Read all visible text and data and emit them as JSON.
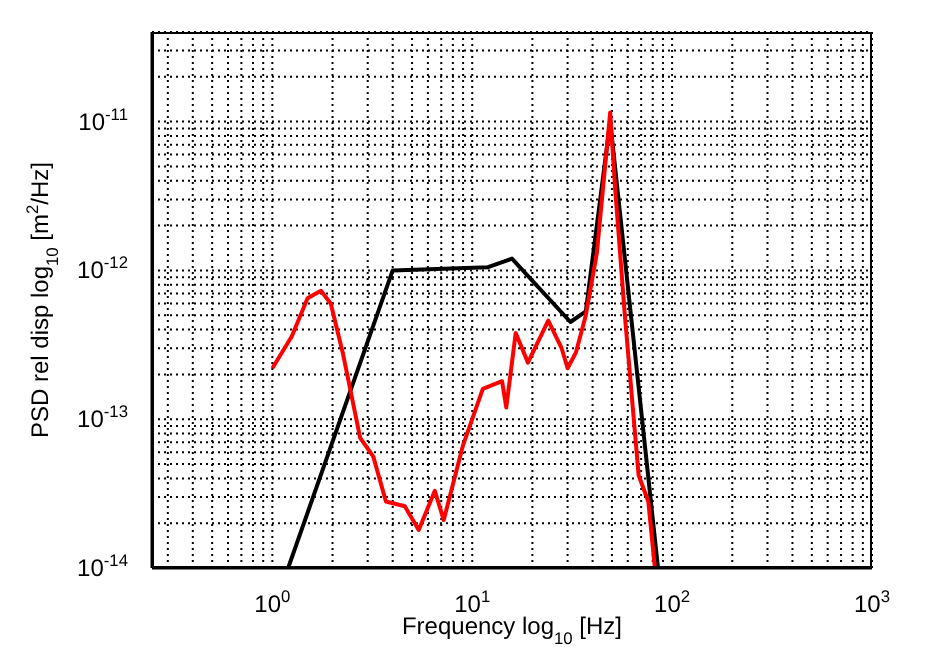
{
  "chart_data": {
    "type": "line",
    "xlabel": "Frequency log$_{10}$ [Hz]",
    "ylabel": "PSD rel disp log$_{10}$ [m$^{2}$/Hz]",
    "log": "xy",
    "grid": true,
    "marker": "none",
    "line_style": "solid",
    "xlim": [
      0.25,
      1000
    ],
    "ylim": [
      1e-14,
      4e-11
    ],
    "xticks": [
      {
        "value": 0.3,
        "label": null
      },
      {
        "value": 0.4,
        "label": null
      },
      {
        "value": 0.5,
        "label": null
      },
      {
        "value": 0.6,
        "label": null
      },
      {
        "value": 0.7,
        "label": null
      },
      {
        "value": 0.8,
        "label": null
      },
      {
        "value": 0.9,
        "label": null
      },
      {
        "value": 1,
        "label": "10$^{0}$"
      },
      {
        "value": 2,
        "label": null
      },
      {
        "value": 3,
        "label": null
      },
      {
        "value": 4,
        "label": null
      },
      {
        "value": 5,
        "label": null
      },
      {
        "value": 6,
        "label": null
      },
      {
        "value": 7,
        "label": null
      },
      {
        "value": 8,
        "label": null
      },
      {
        "value": 9,
        "label": null
      },
      {
        "value": 10,
        "label": "10$^{1}$"
      },
      {
        "value": 20,
        "label": null
      },
      {
        "value": 30,
        "label": null
      },
      {
        "value": 40,
        "label": null
      },
      {
        "value": 50,
        "label": null
      },
      {
        "value": 60,
        "label": null
      },
      {
        "value": 70,
        "label": null
      },
      {
        "value": 80,
        "label": null
      },
      {
        "value": 90,
        "label": null
      },
      {
        "value": 100,
        "label": "10$^{2}$"
      },
      {
        "value": 200,
        "label": null
      },
      {
        "value": 300,
        "label": null
      },
      {
        "value": 400,
        "label": null
      },
      {
        "value": 500,
        "label": null
      },
      {
        "value": 600,
        "label": null
      },
      {
        "value": 700,
        "label": null
      },
      {
        "value": 800,
        "label": null
      },
      {
        "value": 900,
        "label": null
      },
      {
        "value": 1000,
        "label": "10$^{3}$"
      }
    ],
    "yticks": [
      {
        "value": 1e-14,
        "label": "10$^{-14}$"
      },
      {
        "value": 2e-14,
        "label": null
      },
      {
        "value": 3e-14,
        "label": null
      },
      {
        "value": 4e-14,
        "label": null
      },
      {
        "value": 5e-14,
        "label": null
      },
      {
        "value": 6e-14,
        "label": null
      },
      {
        "value": 7e-14,
        "label": null
      },
      {
        "value": 8e-14,
        "label": null
      },
      {
        "value": 9e-14,
        "label": null
      },
      {
        "value": 1e-13,
        "label": "10$^{-13}$"
      },
      {
        "value": 2e-13,
        "label": null
      },
      {
        "value": 3e-13,
        "label": null
      },
      {
        "value": 4e-13,
        "label": null
      },
      {
        "value": 5e-13,
        "label": null
      },
      {
        "value": 6e-13,
        "label": null
      },
      {
        "value": 7e-13,
        "label": null
      },
      {
        "value": 8e-13,
        "label": null
      },
      {
        "value": 9e-13,
        "label": null
      },
      {
        "value": 1e-12,
        "label": "10$^{-12}$"
      },
      {
        "value": 2e-12,
        "label": null
      },
      {
        "value": 3e-12,
        "label": null
      },
      {
        "value": 4e-12,
        "label": null
      },
      {
        "value": 5e-12,
        "label": null
      },
      {
        "value": 6e-12,
        "label": null
      },
      {
        "value": 7e-12,
        "label": null
      },
      {
        "value": 8e-12,
        "label": null
      },
      {
        "value": 9e-12,
        "label": null
      },
      {
        "value": 1e-11,
        "label": "10$^{-11}$"
      },
      {
        "value": 2e-11,
        "label": null
      },
      {
        "value": 3e-11,
        "label": null
      }
    ],
    "series": [
      {
        "color": "#000000",
        "x": [
          1.2,
          4.0,
          12,
          15.8,
          31,
          37,
          49,
          85
        ],
        "values": [
          1e-14,
          1e-12,
          1.05e-12,
          1.2e-12,
          4.5e-13,
          5.3e-13,
          1e-11,
          1e-14
        ]
      },
      {
        "color": "#ff0000",
        "x": [
          1,
          1.25,
          1.5,
          1.75,
          1.96,
          2.25,
          2.75,
          3.2,
          3.7,
          4.6,
          5.4,
          6.5,
          7.2,
          9.0,
          11.3,
          14.1,
          14.8,
          16.5,
          19,
          24,
          28,
          30,
          33,
          37,
          42,
          49,
          52,
          58,
          68,
          76,
          82
        ],
        "values": [
          2.2e-13,
          3.6e-13,
          6.5e-13,
          7.3e-13,
          6e-13,
          2.8e-13,
          7.5e-14,
          5.6e-14,
          2.8e-14,
          2.6e-14,
          1.8e-14,
          3.3e-14,
          2.1e-14,
          6.7e-14,
          1.6e-13,
          1.8e-13,
          1.2e-13,
          3.8e-13,
          2.4e-13,
          4.6e-13,
          3e-13,
          2.2e-13,
          2.8e-13,
          5e-13,
          1.3e-12,
          1.15e-11,
          3.4e-12,
          5e-13,
          4.2e-14,
          2.8e-14,
          1e-14
        ]
      }
    ]
  }
}
